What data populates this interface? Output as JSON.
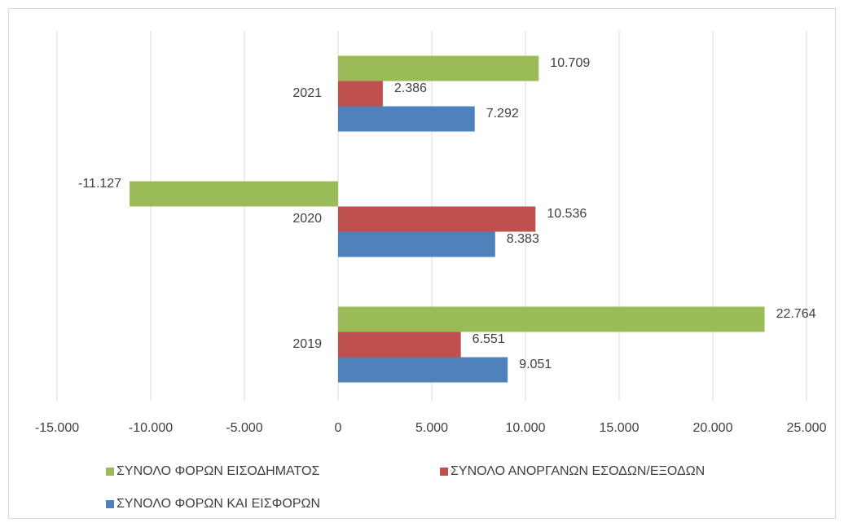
{
  "chart_data": {
    "type": "hbar",
    "categories": [
      "2019",
      "2020",
      "2021"
    ],
    "series": [
      {
        "name": "ΣΥΝΟΛΟ ΦΟΡΩΝ ΕΙΣΟΔΗΜΑΤΟΣ",
        "color": "#9bbb59",
        "values": [
          22764,
          -11127,
          10709
        ],
        "value_labels": [
          "22.764",
          "-11.127",
          "10.709"
        ]
      },
      {
        "name": "ΣΥΝΟΛΟ ΑΝΟΡΓΑΝΩΝ ΕΣΟΔΩΝ/ΕΞΟΔΩΝ",
        "color": "#c0504d",
        "values": [
          6551,
          10536,
          2386
        ],
        "value_labels": [
          "6.551",
          "10.536",
          "2.386"
        ]
      },
      {
        "name": "ΣΥΝΟΛΟ ΦΟΡΩΝ ΚΑΙ ΕΙΣΦΟΡΩΝ",
        "color": "#4f81bd",
        "values": [
          9051,
          8383,
          7292
        ],
        "value_labels": [
          "9.051",
          "8.383",
          "7.292"
        ]
      }
    ],
    "xlim": [
      -15000,
      25000
    ],
    "xticks": [
      {
        "value": -15000,
        "label": "-15.000"
      },
      {
        "value": -10000,
        "label": "-10.000"
      },
      {
        "value": -5000,
        "label": "-5.000"
      },
      0,
      {
        "value": 5000,
        "label": "5.000"
      },
      {
        "value": 10000,
        "label": "10.000"
      },
      {
        "value": 15000,
        "label": "15.000"
      },
      {
        "value": 20000,
        "label": "20.000"
      },
      {
        "value": 25000,
        "label": "25.000"
      }
    ],
    "grid": true,
    "legend": "bottom"
  }
}
